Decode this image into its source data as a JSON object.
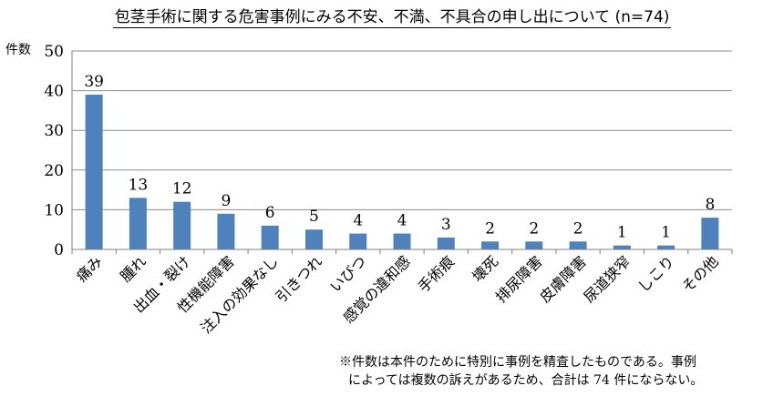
{
  "chart_data": {
    "type": "bar",
    "title": "包茎手術に関する危害事例にみる不安、不満、不具合の申し出について (n=74)",
    "ylabel": "件数",
    "xlabel": "",
    "ylim": [
      0,
      50
    ],
    "yticks": [
      0,
      10,
      20,
      30,
      40,
      50
    ],
    "grid": true,
    "bar_color": "#4f81bd",
    "categories": [
      "痛み",
      "腫れ",
      "出血・裂け",
      "性機能障害",
      "注入の効果なし",
      "引きつれ",
      "いびつ",
      "感覚の違和感",
      "手術痕",
      "壊死",
      "排尿障害",
      "皮膚障害",
      "尿道狭窄",
      "しこり",
      "その他"
    ],
    "values": [
      39,
      13,
      12,
      9,
      6,
      5,
      4,
      4,
      3,
      2,
      2,
      2,
      1,
      1,
      8
    ]
  },
  "footnote": {
    "line1": "※件数は本件のために特別に事例を精査したものである。事例",
    "line2": "によっては複数の訴えがあるため、合計は 74 件にならない。"
  }
}
